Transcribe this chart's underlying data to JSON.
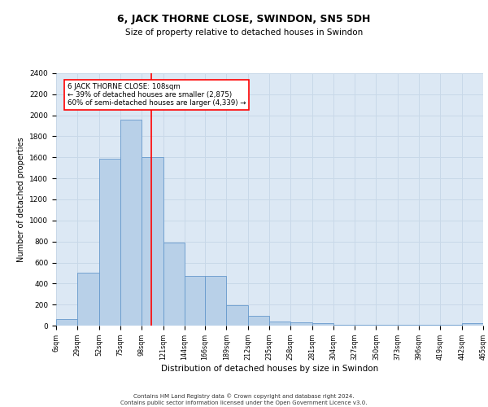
{
  "title": "6, JACK THORNE CLOSE, SWINDON, SN5 5DH",
  "subtitle": "Size of property relative to detached houses in Swindon",
  "xlabel": "Distribution of detached houses by size in Swindon",
  "ylabel": "Number of detached properties",
  "bar_color": "#b8d0e8",
  "bar_edge_color": "#6699cc",
  "grid_color": "#c8d8e8",
  "background_color": "#dce8f4",
  "vline_x": 108,
  "vline_color": "red",
  "annotation_text": "6 JACK THORNE CLOSE: 108sqm\n← 39% of detached houses are smaller (2,875)\n60% of semi-detached houses are larger (4,339) →",
  "annotation_box_color": "white",
  "annotation_border_color": "red",
  "bin_edges": [
    6,
    29,
    52,
    75,
    98,
    121,
    144,
    166,
    189,
    212,
    235,
    258,
    281,
    304,
    327,
    350,
    373,
    396,
    419,
    442,
    465
  ],
  "bar_heights": [
    60,
    500,
    1590,
    1960,
    1600,
    790,
    470,
    470,
    195,
    90,
    35,
    30,
    20,
    5,
    5,
    5,
    5,
    5,
    5,
    20
  ],
  "ylim": [
    0,
    2400
  ],
  "yticks": [
    0,
    200,
    400,
    600,
    800,
    1000,
    1200,
    1400,
    1600,
    1800,
    2000,
    2200,
    2400
  ],
  "footer_line1": "Contains HM Land Registry data © Crown copyright and database right 2024.",
  "footer_line2": "Contains public sector information licensed under the Open Government Licence v3.0."
}
